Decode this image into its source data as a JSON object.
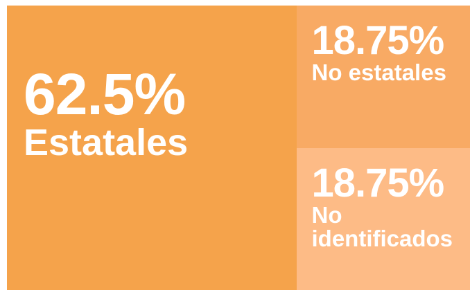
{
  "chart_data": {
    "type": "treemap",
    "categories": [
      "Estatales",
      "No estatales",
      "No identificados"
    ],
    "values": [
      62.5,
      18.75,
      18.75
    ],
    "value_labels": [
      "62.5%",
      "18.75%",
      "18.75%"
    ],
    "colors": [
      "#f5a34b",
      "#f8aa64",
      "#fdbb86"
    ]
  }
}
